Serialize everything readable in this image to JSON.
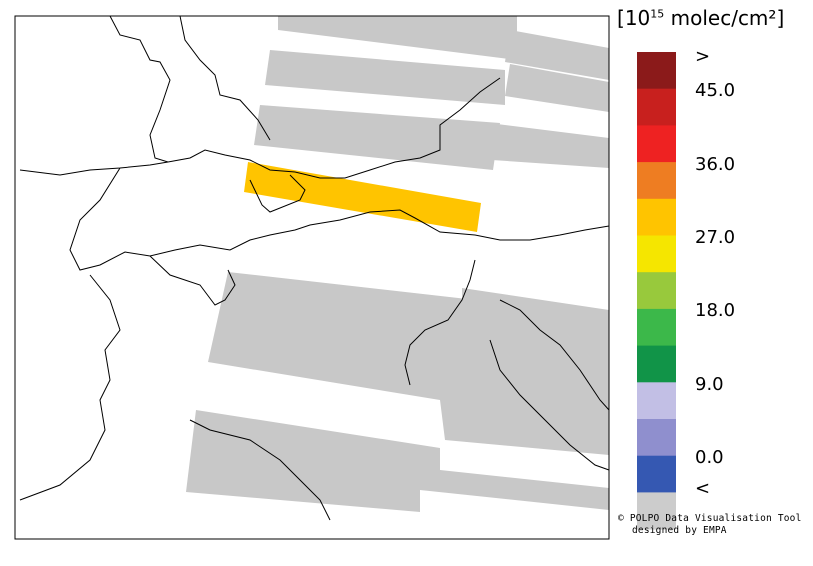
{
  "legend": {
    "title_base": "10",
    "title_exp": "15",
    "title_unit": "molec/cm²",
    "labels": [
      ">",
      "45.0",
      "36.0",
      "27.0",
      "18.0",
      "9.0",
      "0.0",
      "<"
    ],
    "colors": [
      "#8b1a1a",
      "#c8201e",
      "#ee2222",
      "#ee7d22",
      "#ffc400",
      "#f5e600",
      "#98c93c",
      "#3cb84a",
      "#119448",
      "#c2bfe5",
      "#8f8fce",
      "#3558b2",
      "#cccccc"
    ]
  },
  "credit": {
    "line1": "© POLPO Data Visualisation Tool",
    "line2": "designed by EMPA"
  },
  "swath_colors": {
    "no_data": "#c8c8c8",
    "highlight": "#ffc400"
  }
}
